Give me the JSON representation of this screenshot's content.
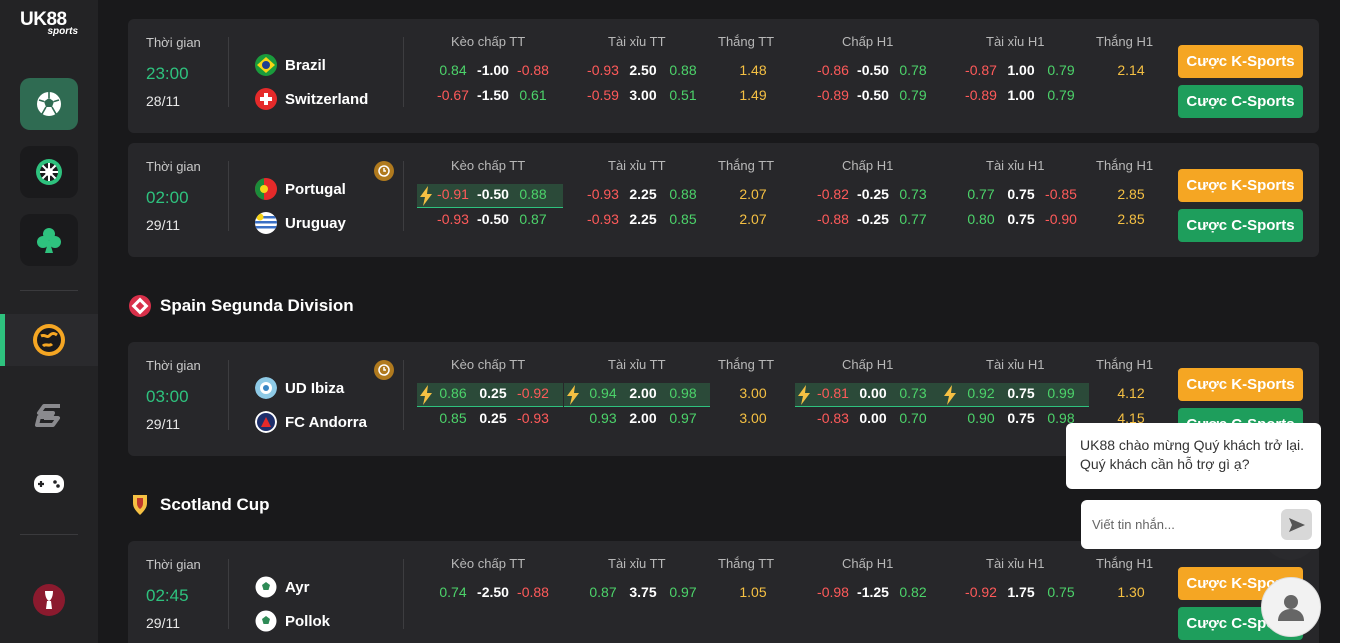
{
  "brand": {
    "line1": "UK88",
    "line2": "sports"
  },
  "sidebar": {
    "items": [
      {
        "name": "soccer",
        "icon": "soccer-ball-icon"
      },
      {
        "name": "virtual",
        "icon": "wheel-icon"
      },
      {
        "name": "casino",
        "icon": "club-icon"
      },
      {
        "name": "esports",
        "icon": "globe-icon"
      },
      {
        "name": "slot",
        "icon": "s-logo-icon"
      },
      {
        "name": "games",
        "icon": "gamepad-icon"
      },
      {
        "name": "worldcup",
        "icon": "trophy-icon"
      }
    ]
  },
  "headers": {
    "time": "Thời gian",
    "handicap_ft": "Kèo chấp TT",
    "ou_ft": "Tài xỉu TT",
    "win_ft": "Thắng TT",
    "handicap_h1": "Chấp H1",
    "ou_h1": "Tài xỉu H1",
    "win_h1": "Thắng H1"
  },
  "buttons": {
    "k_sports": "Cược K-Sports",
    "c_sports": "Cược C-Sports"
  },
  "leagues": [
    {
      "name": "Spain Segunda Division"
    },
    {
      "name": "Scotland Cup"
    }
  ],
  "matches": [
    {
      "time": "23:00",
      "date": "28/11",
      "home": "Brazil",
      "away": "Switzerland",
      "rows": [
        [
          "0.84",
          "-1.00",
          "-0.88",
          "-0.93",
          "2.50",
          "0.88",
          "1.48",
          "-0.86",
          "-0.50",
          "0.78",
          "-0.87",
          "1.00",
          "0.79",
          "2.14"
        ],
        [
          "-0.67",
          "-1.50",
          "0.61",
          "-0.59",
          "3.00",
          "0.51",
          "1.49",
          "-0.89",
          "-0.50",
          "0.79",
          "-0.89",
          "1.00",
          "0.79",
          ""
        ]
      ]
    },
    {
      "time": "02:00",
      "date": "29/11",
      "home": "Portugal",
      "away": "Uruguay",
      "rows": [
        [
          "-0.91",
          "-0.50",
          "0.88",
          "-0.93",
          "2.25",
          "0.88",
          "2.07",
          "-0.82",
          "-0.25",
          "0.73",
          "0.77",
          "0.75",
          "-0.85",
          "2.85"
        ],
        [
          "-0.93",
          "-0.50",
          "0.87",
          "-0.93",
          "2.25",
          "0.85",
          "2.07",
          "-0.88",
          "-0.25",
          "0.77",
          "0.80",
          "0.75",
          "-0.90",
          "2.85"
        ]
      ]
    },
    {
      "time": "03:00",
      "date": "29/11",
      "home": "UD Ibiza",
      "away": "FC Andorra",
      "rows": [
        [
          "0.86",
          "0.25",
          "-0.92",
          "0.94",
          "2.00",
          "0.98",
          "3.00",
          "-0.81",
          "0.00",
          "0.73",
          "0.92",
          "0.75",
          "0.99",
          "4.12"
        ],
        [
          "0.85",
          "0.25",
          "-0.93",
          "0.93",
          "2.00",
          "0.97",
          "3.00",
          "-0.83",
          "0.00",
          "0.70",
          "0.90",
          "0.75",
          "0.98",
          "4.15"
        ]
      ]
    },
    {
      "time": "02:45",
      "date": "29/11",
      "home": "Ayr",
      "away": "Pollok",
      "rows": [
        [
          "0.74",
          "-2.50",
          "-0.88",
          "0.87",
          "3.75",
          "0.97",
          "1.05",
          "-0.98",
          "-1.25",
          "0.82",
          "-0.92",
          "1.75",
          "0.75",
          "1.30"
        ]
      ]
    }
  ],
  "chat": {
    "message": "UK88 chào mừng Quý khách trở lại. Quý khách cần hỗ trợ gì ạ?",
    "placeholder": "Viết tin nhắn..."
  },
  "colors": {
    "accent": "#2ec27e",
    "orange": "#f5a623",
    "green_btn": "#1e9e5c"
  }
}
